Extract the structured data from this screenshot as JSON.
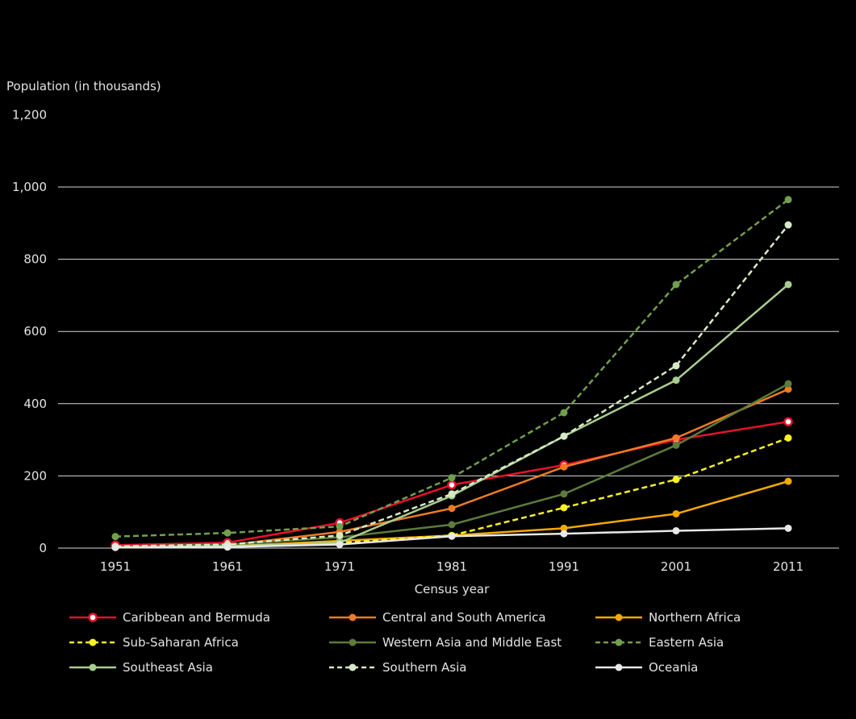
{
  "page": {
    "background": "#000000",
    "text_color": "#e3e3e3"
  },
  "chart_data": {
    "type": "line",
    "title": "",
    "ylabel": "Population (in thousands)",
    "xlabel": "Census year",
    "x": [
      1951,
      1961,
      1971,
      1981,
      1991,
      2001,
      2011
    ],
    "x_tick_labels": [
      "1951",
      "1961",
      "1971",
      "1981",
      "1991",
      "2001",
      "2011"
    ],
    "y_ticks": [
      0,
      200,
      400,
      600,
      800,
      1000,
      1200
    ],
    "y_tick_labels": [
      "0",
      "200",
      "400",
      "600",
      "800",
      "1,000",
      "1,200"
    ],
    "gridlines_at": [
      0,
      200,
      400,
      600,
      800,
      1000
    ],
    "ylim": [
      0,
      1200
    ],
    "grid": true,
    "grid_color": "#d9d9d9",
    "legend_position": "bottom",
    "series": [
      {
        "name": "Caribbean and Bermuda",
        "color": "#e8112d",
        "dash": false,
        "marker": "open-circle",
        "values": [
          8,
          15,
          70,
          175,
          230,
          300,
          350
        ]
      },
      {
        "name": "Central and South America",
        "color": "#ef7b24",
        "dash": false,
        "marker": "circle",
        "values": [
          3,
          8,
          45,
          110,
          225,
          305,
          440
        ]
      },
      {
        "name": "Northern Africa",
        "color": "#f6a800",
        "dash": false,
        "marker": "circle",
        "values": [
          2,
          5,
          20,
          35,
          55,
          95,
          185
        ]
      },
      {
        "name": "Sub-Saharan Africa",
        "color": "#f9f121",
        "dash": true,
        "marker": "circle",
        "values": [
          2,
          5,
          15,
          35,
          112,
          190,
          305
        ]
      },
      {
        "name": "Western Asia and Middle East",
        "color": "#5d7b3c",
        "dash": false,
        "marker": "circle",
        "values": [
          5,
          10,
          30,
          65,
          150,
          285,
          455
        ]
      },
      {
        "name": "Eastern Asia",
        "color": "#71a04c",
        "dash": true,
        "marker": "circle",
        "values": [
          32,
          42,
          60,
          195,
          375,
          730,
          965
        ]
      },
      {
        "name": "Southeast Asia",
        "color": "#a9cd8e",
        "dash": false,
        "marker": "circle",
        "values": [
          2,
          5,
          15,
          145,
          310,
          465,
          730
        ]
      },
      {
        "name": "Southern Asia",
        "color": "#d5e9c4",
        "dash": true,
        "marker": "circle",
        "values": [
          5,
          10,
          35,
          150,
          310,
          505,
          895
        ]
      },
      {
        "name": "Oceania",
        "color": "#e8e8e8",
        "dash": false,
        "marker": "circle",
        "values": [
          2,
          3,
          10,
          33,
          40,
          48,
          55
        ]
      }
    ]
  }
}
